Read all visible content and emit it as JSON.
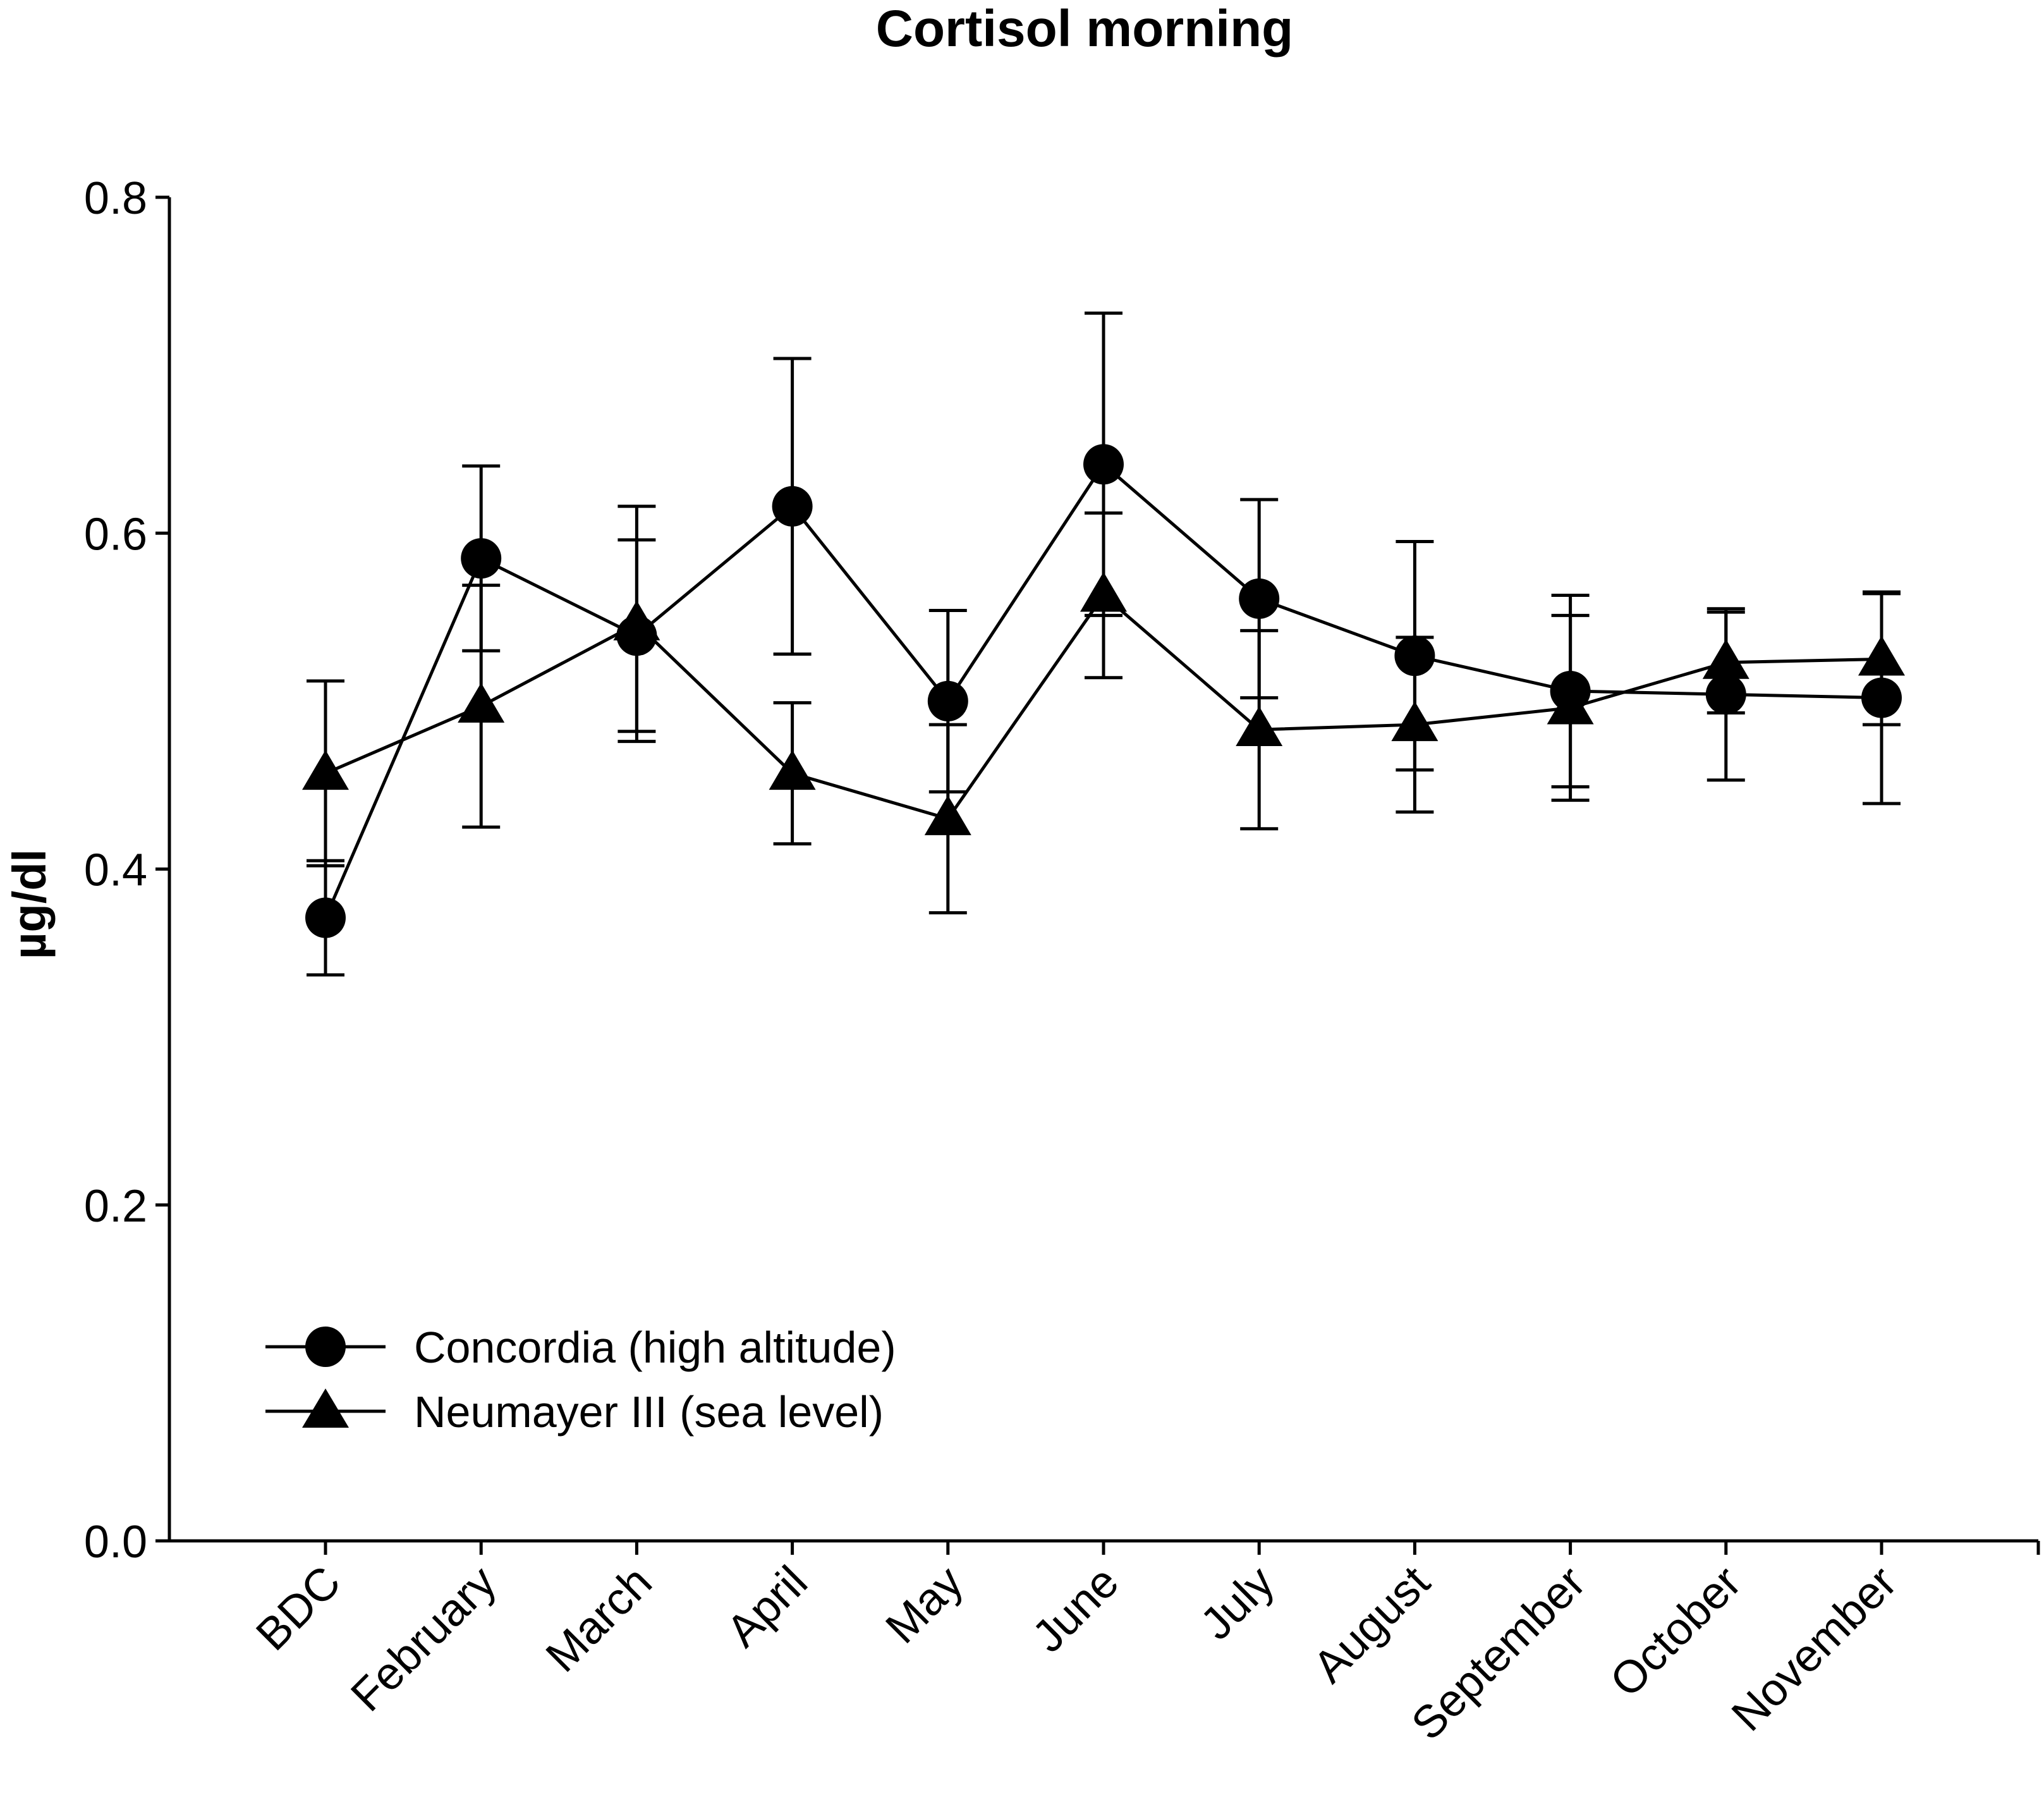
{
  "chart_data": {
    "type": "line",
    "title": "Cortisol morning",
    "xlabel": "",
    "ylabel": "µg/dl",
    "ylim": [
      0.0,
      0.8
    ],
    "yticks": [
      "0.0",
      "0.2",
      "0.4",
      "0.6",
      "0.8"
    ],
    "categories": [
      "BDC",
      "February",
      "March",
      "April",
      "May",
      "June",
      "July",
      "August",
      "September",
      "October",
      "November"
    ],
    "legend_position": "lower-left",
    "series": [
      {
        "name": "Concordia (high altitude)",
        "marker": "circle",
        "values": [
          0.371,
          0.585,
          0.539,
          0.616,
          0.5,
          0.641,
          0.561,
          0.527,
          0.506,
          0.504,
          0.502
        ],
        "error": [
          0.034,
          0.055,
          0.057,
          0.088,
          0.054,
          0.09,
          0.059,
          0.068,
          0.057,
          0.051,
          0.063
        ]
      },
      {
        "name": "Neumayer III (sea level)",
        "marker": "triangle",
        "values": [
          0.457,
          0.497,
          0.546,
          0.457,
          0.43,
          0.563,
          0.483,
          0.486,
          0.496,
          0.523,
          0.525
        ],
        "error": [
          0.055,
          0.072,
          0.07,
          0.042,
          0.056,
          0.049,
          0.059,
          0.052,
          0.055,
          0.03,
          0.039
        ]
      }
    ]
  },
  "colors": {
    "ink": "#000000",
    "background": "#ffffff"
  }
}
